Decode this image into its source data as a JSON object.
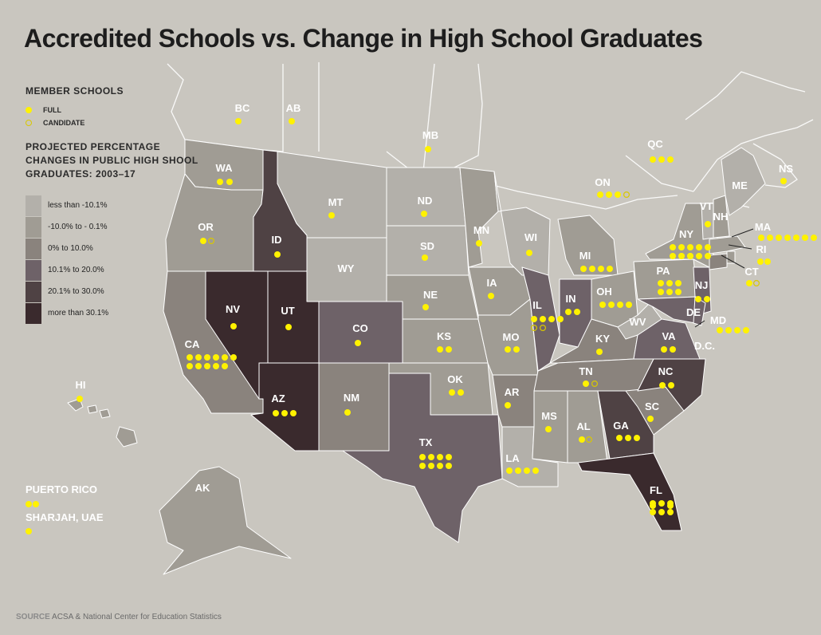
{
  "title": "Accredited Schools vs. Change in High School Graduates",
  "legend": {
    "member_heading": "MEMBER SCHOOLS",
    "full_label": "FULL",
    "candidate_label": "CANDIDATE",
    "scale_heading": "PROJECTED PERCENTAGE CHANGES IN PUBLIC HIGH SHOOL GRADUATES: 2003–17",
    "scale_heading_lines": [
      "PROJECTED PERCENTAGE",
      "CHANGES IN PUBLIC HIGH SHOOL",
      "GRADUATES: 2003–17"
    ],
    "bins": [
      {
        "label": "less than -10.1%",
        "color": "#b3b0aa"
      },
      {
        "label": "-10.0% to - 0.1%",
        "color": "#a09c94"
      },
      {
        "label": "0% to 10.0%",
        "color": "#8a837d"
      },
      {
        "label": "10.1% to 20.0%",
        "color": "#6e6268"
      },
      {
        "label": "20.1% to 30.0%",
        "color": "#4f4244"
      },
      {
        "label": "more than 30.1%",
        "color": "#3a2a2d"
      }
    ]
  },
  "colors": {
    "background": "#c9c6bf",
    "full_dot": "#fff200",
    "candidate_dot": "#d9c800",
    "label": "#ffffff"
  },
  "regions": [
    {
      "code": "WA",
      "bin": 1,
      "full": 2,
      "candidate": 0
    },
    {
      "code": "OR",
      "bin": 1,
      "full": 1,
      "candidate": 1
    },
    {
      "code": "CA",
      "bin": 2,
      "full": 11,
      "candidate": 0
    },
    {
      "code": "NV",
      "bin": 5,
      "full": 1,
      "candidate": 0
    },
    {
      "code": "ID",
      "bin": 4,
      "full": 1,
      "candidate": 0
    },
    {
      "code": "MT",
      "bin": 0,
      "full": 1,
      "candidate": 0
    },
    {
      "code": "WY",
      "bin": 0,
      "full": 0,
      "candidate": 0
    },
    {
      "code": "UT",
      "bin": 5,
      "full": 1,
      "candidate": 0
    },
    {
      "code": "AZ",
      "bin": 5,
      "full": 3,
      "candidate": 0
    },
    {
      "code": "CO",
      "bin": 3,
      "full": 1,
      "candidate": 0
    },
    {
      "code": "NM",
      "bin": 2,
      "full": 1,
      "candidate": 0
    },
    {
      "code": "ND",
      "bin": 0,
      "full": 1,
      "candidate": 0
    },
    {
      "code": "SD",
      "bin": 0,
      "full": 1,
      "candidate": 0
    },
    {
      "code": "NE",
      "bin": 1,
      "full": 1,
      "candidate": 0
    },
    {
      "code": "KS",
      "bin": 1,
      "full": 2,
      "candidate": 0
    },
    {
      "code": "OK",
      "bin": 1,
      "full": 2,
      "candidate": 0
    },
    {
      "code": "TX",
      "bin": 3,
      "full": 8,
      "candidate": 0
    },
    {
      "code": "MN",
      "bin": 1,
      "full": 1,
      "candidate": 0
    },
    {
      "code": "IA",
      "bin": 1,
      "full": 1,
      "candidate": 0
    },
    {
      "code": "MO",
      "bin": 1,
      "full": 2,
      "candidate": 0
    },
    {
      "code": "AR",
      "bin": 2,
      "full": 1,
      "candidate": 0
    },
    {
      "code": "LA",
      "bin": 0,
      "full": 4,
      "candidate": 0
    },
    {
      "code": "WI",
      "bin": 0,
      "full": 1,
      "candidate": 0
    },
    {
      "code": "IL",
      "bin": 3,
      "full": 4,
      "candidate": 2
    },
    {
      "code": "MI",
      "bin": 1,
      "full": 4,
      "candidate": 0
    },
    {
      "code": "IN",
      "bin": 3,
      "full": 2,
      "candidate": 0
    },
    {
      "code": "OH",
      "bin": 1,
      "full": 4,
      "candidate": 0
    },
    {
      "code": "KY",
      "bin": 2,
      "full": 1,
      "candidate": 0
    },
    {
      "code": "TN",
      "bin": 2,
      "full": 1,
      "candidate": 1
    },
    {
      "code": "MS",
      "bin": 1,
      "full": 1,
      "candidate": 0
    },
    {
      "code": "AL",
      "bin": 1,
      "full": 1,
      "candidate": 1
    },
    {
      "code": "GA",
      "bin": 4,
      "full": 3,
      "candidate": 0
    },
    {
      "code": "FL",
      "bin": 5,
      "full": 8,
      "candidate": 0
    },
    {
      "code": "SC",
      "bin": 2,
      "full": 1,
      "candidate": 0
    },
    {
      "code": "NC",
      "bin": 4,
      "full": 2,
      "candidate": 0
    },
    {
      "code": "VA",
      "bin": 3,
      "full": 2,
      "candidate": 0
    },
    {
      "code": "WV",
      "bin": 0,
      "full": 0,
      "candidate": 0
    },
    {
      "code": "PA",
      "bin": 1,
      "full": 6,
      "candidate": 0
    },
    {
      "code": "NY",
      "bin": 1,
      "full": 12,
      "candidate": 0
    },
    {
      "code": "NJ",
      "bin": 3,
      "full": 2,
      "candidate": 0
    },
    {
      "code": "MD",
      "bin": 3,
      "full": 4,
      "candidate": 0
    },
    {
      "code": "DE",
      "bin": 3,
      "full": 0,
      "candidate": 0
    },
    {
      "code": "D.C.",
      "bin": 3,
      "full": 0,
      "candidate": 0
    },
    {
      "code": "CT",
      "bin": 2,
      "full": 1,
      "candidate": 1
    },
    {
      "code": "RI",
      "bin": 1,
      "full": 2,
      "candidate": 0
    },
    {
      "code": "MA",
      "bin": 1,
      "full": 7,
      "candidate": 0
    },
    {
      "code": "VT",
      "bin": 0,
      "full": 1,
      "candidate": 0
    },
    {
      "code": "NH",
      "bin": 1,
      "full": 0,
      "candidate": 0
    },
    {
      "code": "ME",
      "bin": 0,
      "full": 0,
      "candidate": 0
    },
    {
      "code": "AK",
      "bin": 1,
      "full": 0,
      "candidate": 0
    },
    {
      "code": "HI",
      "bin": 1,
      "full": 1,
      "candidate": 0
    }
  ],
  "canada": [
    {
      "code": "BC",
      "full": 1,
      "candidate": 0
    },
    {
      "code": "AB",
      "full": 1,
      "candidate": 0
    },
    {
      "code": "MB",
      "full": 1,
      "candidate": 0
    },
    {
      "code": "ON",
      "full": 3,
      "candidate": 1
    },
    {
      "code": "QC",
      "full": 3,
      "candidate": 0
    },
    {
      "code": "NS",
      "full": 1,
      "candidate": 0
    }
  ],
  "other": [
    {
      "code": "PUERTO RICO",
      "full": 2,
      "candidate": 0
    },
    {
      "code": "SHARJAH, UAE",
      "full": 1,
      "candidate": 0
    }
  ],
  "source": {
    "label": "SOURCE",
    "text": "ACSA & National Center for Education Statistics"
  }
}
